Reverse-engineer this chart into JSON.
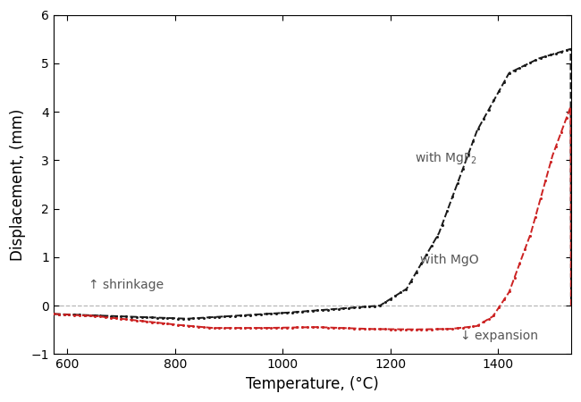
{
  "title": "",
  "xlabel": "Temperature, (°C)",
  "ylabel": "Displacement, (mm)",
  "xlim": [
    575,
    1535
  ],
  "ylim": [
    -1,
    6
  ],
  "yticks": [
    -1,
    0,
    1,
    2,
    3,
    4,
    5,
    6
  ],
  "xticks": [
    600,
    800,
    1000,
    1200,
    1400
  ],
  "background_color": "#ffffff",
  "dashed_line_y": 0,
  "annotation_shrinkage": "↑ shrinkage",
  "annotation_expansion": "↓ expansion",
  "annotation_mgf2": "with MgF$_2$",
  "annotation_mgo": "with MgO",
  "mgf2_color": "#1a1a1a",
  "mgo_color": "#cc2222",
  "label_color": "#555555"
}
